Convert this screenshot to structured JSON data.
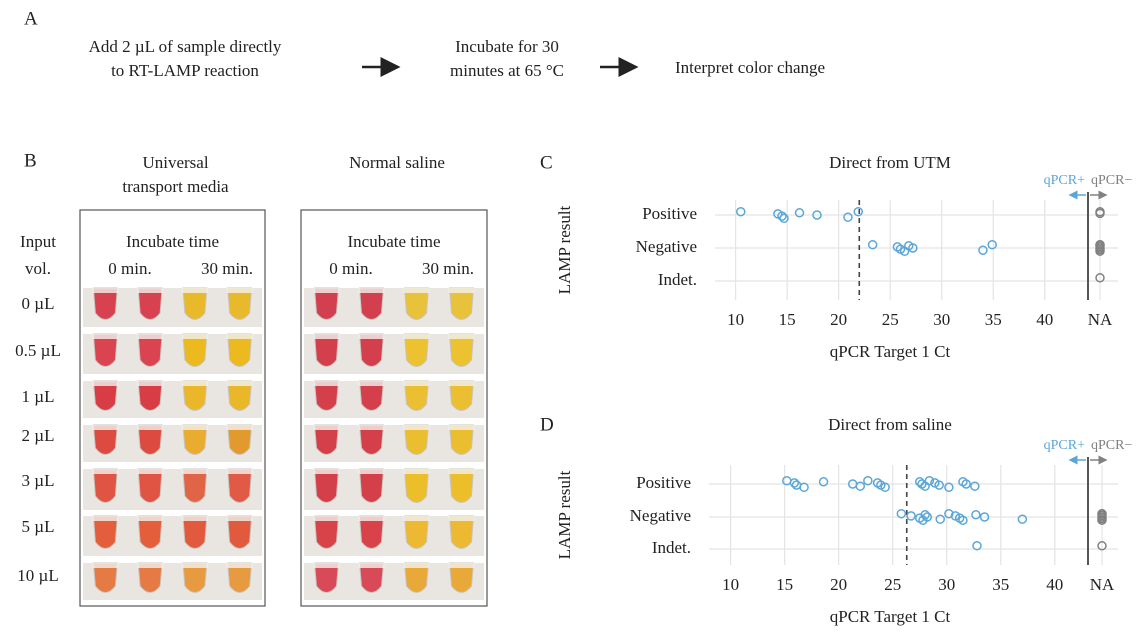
{
  "panel_a": {
    "label": "A",
    "steps": [
      [
        "Add 2 µL of sample directly",
        "to RT-LAMP reaction"
      ],
      [
        "Incubate for 30",
        "minutes at 65 °C"
      ],
      [
        "Interpret color change"
      ]
    ]
  },
  "panel_b": {
    "label": "B",
    "row_header": [
      "Input",
      "vol."
    ],
    "volumes": [
      "0 µL",
      "0.5 µL",
      "1 µL",
      "2 µL",
      "3 µL",
      "5 µL",
      "10 µL"
    ],
    "groups": [
      {
        "title": [
          "Universal",
          "transport media"
        ],
        "subtitle": "Incubate time",
        "times": [
          "0 min.",
          "30 min."
        ]
      },
      {
        "title": [
          "Normal saline"
        ],
        "subtitle": "Incubate time",
        "times": [
          "0 min.",
          "30 min."
        ]
      }
    ]
  },
  "chart_data": [
    {
      "type": "scatter",
      "label": "C",
      "title": "Direct from UTM",
      "xlabel": "qPCR Target 1 Ct",
      "ylabel": "LAMP result",
      "xlim": [
        8,
        44
      ],
      "xticks": [
        10,
        15,
        20,
        25,
        30,
        35,
        40
      ],
      "na_label": "NA",
      "threshold": 22,
      "annotations": [
        "qPCR+",
        "qPCR−"
      ],
      "point_color": "#5aa6d8",
      "na_color": "#808080",
      "grid": true,
      "series": [
        {
          "name": "Positive",
          "values": [
            10.5,
            14.1,
            14.5,
            14.7,
            16.2,
            17.9,
            20.9,
            21.9,
            null,
            null
          ]
        },
        {
          "name": "Negative",
          "values": [
            23.3,
            25.7,
            26.0,
            26.4,
            26.8,
            27.2,
            34.0,
            34.9,
            null,
            null,
            null,
            null,
            null,
            null
          ]
        },
        {
          "name": "Indet.",
          "values": [
            null
          ]
        }
      ]
    },
    {
      "type": "scatter",
      "label": "D",
      "title": "Direct from saline",
      "xlabel": "qPCR Target 1 Ct",
      "ylabel": "LAMP result",
      "xlim": [
        8,
        44
      ],
      "xticks": [
        10,
        15,
        20,
        25,
        30,
        35,
        40
      ],
      "na_label": "NA",
      "threshold": 26.3,
      "annotations": [
        "qPCR+",
        "qPCR−"
      ],
      "point_color": "#5aa6d8",
      "na_color": "#808080",
      "grid": true,
      "series": [
        {
          "name": "Positive",
          "values": [
            15.2,
            15.9,
            16.1,
            16.8,
            18.6,
            21.3,
            22.0,
            22.7,
            23.6,
            23.9,
            24.3,
            27.5,
            27.7,
            28.0,
            28.4,
            28.9,
            29.3,
            30.2,
            31.5,
            31.8,
            32.6
          ]
        },
        {
          "name": "Negative",
          "values": [
            25.8,
            26.7,
            27.5,
            27.8,
            28.0,
            28.2,
            29.4,
            30.2,
            30.8,
            31.2,
            31.5,
            32.7,
            33.5,
            37.0,
            null,
            null,
            null,
            null,
            null,
            null
          ]
        },
        {
          "name": "Indet.",
          "values": [
            32.8,
            null
          ]
        }
      ]
    }
  ]
}
